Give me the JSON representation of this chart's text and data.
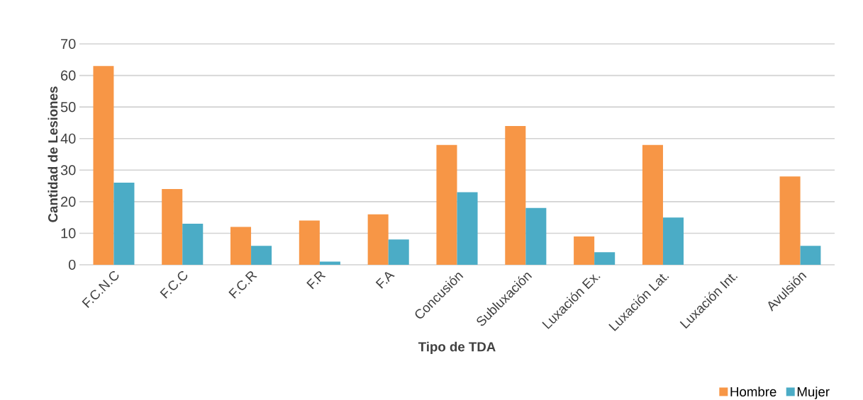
{
  "chart_data": {
    "type": "bar",
    "xlabel": "Tipo de TDA",
    "ylabel": "Cantidad de Lesiones",
    "categories": [
      "F.C.N.C",
      "F.C.C",
      "F.C.R",
      "F.R",
      "F.A",
      "Concusión",
      "Subluxación",
      "Luxación Ex.",
      "Luxación Lat.",
      "Luxación Int.",
      "Avulsión"
    ],
    "series": [
      {
        "name": "Hombre",
        "color": "#f79646",
        "values": [
          63,
          24,
          12,
          14,
          16,
          38,
          44,
          9,
          38,
          0,
          28
        ]
      },
      {
        "name": "Mujer",
        "color": "#4bacc6",
        "values": [
          26,
          13,
          6,
          1,
          8,
          23,
          18,
          4,
          15,
          0,
          6
        ]
      }
    ],
    "ylim": [
      0,
      70
    ],
    "yticks": [
      0,
      10,
      20,
      30,
      40,
      50,
      60,
      70
    ],
    "grid": "y",
    "legend": "bottom right"
  }
}
